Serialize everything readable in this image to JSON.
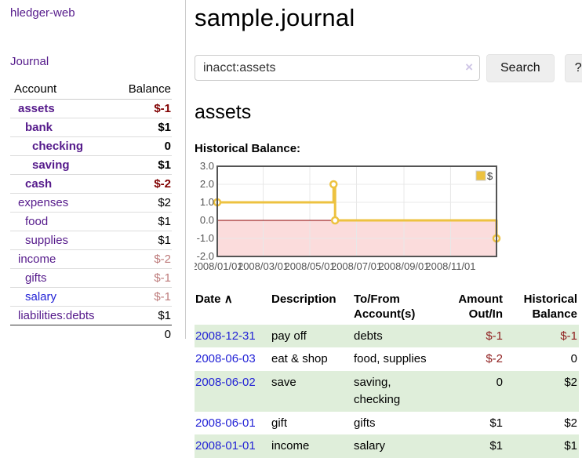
{
  "sidebar": {
    "brand": "hledger-web",
    "journal_link": "Journal",
    "table": {
      "account_header": "Account",
      "balance_header": "Balance",
      "rows": [
        {
          "name": "assets",
          "balance": "$-1",
          "indent": 1,
          "bold": true,
          "balance_style": "neg-strong"
        },
        {
          "name": "bank",
          "balance": "$1",
          "indent": 2,
          "bold": true,
          "balance_style": "pos-bold"
        },
        {
          "name": "checking",
          "balance": "0",
          "indent": 3,
          "bold": true,
          "balance_style": "pos-bold"
        },
        {
          "name": "saving",
          "balance": "$1",
          "indent": 3,
          "bold": true,
          "balance_style": "pos-bold"
        },
        {
          "name": "cash",
          "balance": "$-2",
          "indent": 2,
          "bold": true,
          "balance_style": "neg-strong"
        },
        {
          "name": "expenses",
          "balance": "$2",
          "indent": 1,
          "bold": false,
          "balance_style": "pos"
        },
        {
          "name": "food",
          "balance": "$1",
          "indent": 2,
          "bold": false,
          "balance_style": "pos"
        },
        {
          "name": "supplies",
          "balance": "$1",
          "indent": 2,
          "bold": false,
          "balance_style": "pos"
        },
        {
          "name": "income",
          "balance": "$-2",
          "indent": 1,
          "bold": false,
          "balance_style": "neg-dim"
        },
        {
          "name": "gifts",
          "balance": "$-1",
          "indent": 2,
          "bold": false,
          "balance_style": "neg-dim"
        },
        {
          "name": "salary",
          "balance": "$-1",
          "indent": 2,
          "bold": false,
          "balance_style": "neg-dim",
          "link_style": "unvisited"
        },
        {
          "name": "liabilities:debts",
          "balance": "$1",
          "indent": 1,
          "bold": false,
          "balance_style": "pos"
        }
      ],
      "total": "0"
    }
  },
  "header": {
    "title": "sample.journal"
  },
  "search": {
    "value": "inacct:assets",
    "clear_icon": "×",
    "search_button": "Search",
    "help_button": "?"
  },
  "main": {
    "account_heading": "assets",
    "chart_label": "Historical Balance:"
  },
  "chart_data": {
    "type": "line",
    "step": true,
    "title": "Historical Balance:",
    "xlim": [
      "2008-01-01",
      "2008-12-31"
    ],
    "ylim": [
      -2,
      3
    ],
    "x_ticks": [
      {
        "v": "2008-01-01",
        "label": "2008/01/01"
      },
      {
        "v": "2008-03-01",
        "label": "2008/03/01"
      },
      {
        "v": "2008-05-01",
        "label": "2008/05/01"
      },
      {
        "v": "2008-07-01",
        "label": "2008/07/01"
      },
      {
        "v": "2008-09-01",
        "label": "2008/09/01"
      },
      {
        "v": "2008-11-01",
        "label": "2008/11/01"
      }
    ],
    "y_ticks": [
      {
        "v": 3,
        "label": "3.0"
      },
      {
        "v": 2,
        "label": "2.0"
      },
      {
        "v": 1,
        "label": "1.0"
      },
      {
        "v": 0,
        "label": "0.0"
      },
      {
        "v": -1,
        "label": "-1.0"
      },
      {
        "v": -2,
        "label": "-2.0"
      }
    ],
    "series": [
      {
        "name": "$",
        "color": "#edc240",
        "points": [
          [
            "2008-01-01",
            1
          ],
          [
            "2008-06-01",
            2
          ],
          [
            "2008-06-03",
            0
          ],
          [
            "2008-12-31",
            -1
          ]
        ]
      }
    ],
    "legend": {
      "label": "$",
      "position": "top-right"
    },
    "grid": true,
    "colors": {
      "negative_region_fill": "#fbdcdc",
      "zero_line": "#8b0000",
      "border": "#545454",
      "gridline": "#e8e8e8",
      "tick_text": "#545454",
      "marker_fill": "#ffffff"
    }
  },
  "register": {
    "headers": {
      "date": "Date",
      "sort_icon": "∧",
      "description": "Description",
      "accounts": "To/From Account(s)",
      "amount": "Amount Out/In",
      "balance": "Historical Balance"
    },
    "rows": [
      {
        "date": "2008-12-31",
        "description": "pay off",
        "accounts": "debts",
        "amount": "$-1",
        "amount_neg": true,
        "balance": "$-1",
        "balance_neg": true,
        "striped": true
      },
      {
        "date": "2008-06-03",
        "description": "eat & shop",
        "accounts": "food, supplies",
        "amount": "$-2",
        "amount_neg": true,
        "balance": "0",
        "balance_neg": false,
        "striped": false
      },
      {
        "date": "2008-06-02",
        "description": "save",
        "accounts": "saving, checking",
        "amount": "0",
        "amount_neg": false,
        "balance": "$2",
        "balance_neg": false,
        "striped": true
      },
      {
        "date": "2008-06-01",
        "description": "gift",
        "accounts": "gifts",
        "amount": "$1",
        "amount_neg": false,
        "balance": "$2",
        "balance_neg": false,
        "striped": false
      },
      {
        "date": "2008-01-01",
        "description": "income",
        "accounts": "salary",
        "amount": "$1",
        "amount_neg": false,
        "balance": "$1",
        "balance_neg": false,
        "striped": true
      }
    ]
  }
}
